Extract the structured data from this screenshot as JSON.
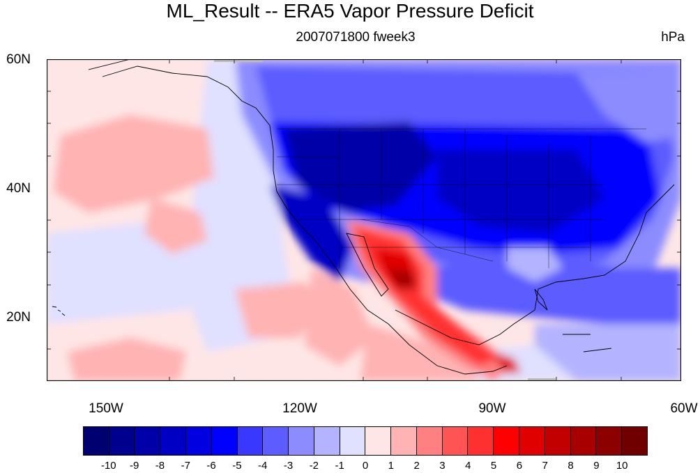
{
  "title": "ML_Result -- ERA5 Vapor Pressure Deficit",
  "subtitle": "2007071800 fweek3",
  "units": "hPa",
  "lat_labels": [
    "60N",
    "40N",
    "20N"
  ],
  "lon_labels": [
    "150W",
    "120W",
    "90W",
    "60W"
  ],
  "colorbar": {
    "labels": [
      "-10",
      "-9",
      "-8",
      "-7",
      "-6",
      "-5",
      "-4",
      "-3",
      "-2",
      "-1",
      "0",
      "1",
      "2",
      "3",
      "4",
      "5",
      "6",
      "7",
      "8",
      "9",
      "10"
    ],
    "colors": [
      "#000070",
      "#00008f",
      "#0000a8",
      "#0000c4",
      "#0000e0",
      "#0000ff",
      "#3838ff",
      "#5c5cff",
      "#8c8cff",
      "#b3b3ff",
      "#e0e0ff",
      "#ffe6e6",
      "#ffb3b3",
      "#ff8080",
      "#ff5454",
      "#ff3030",
      "#ff0000",
      "#e00000",
      "#c20000",
      "#a80000",
      "#8c0000",
      "#700000"
    ]
  },
  "map": {
    "projection": "cylindrical-equidistant",
    "lon_range": [
      -159,
      -60
    ],
    "lat_range": [
      10,
      60
    ],
    "lon_ticks": [
      -150,
      -120,
      -90,
      -60
    ],
    "lat_ticks": [
      60,
      40,
      20
    ]
  }
}
